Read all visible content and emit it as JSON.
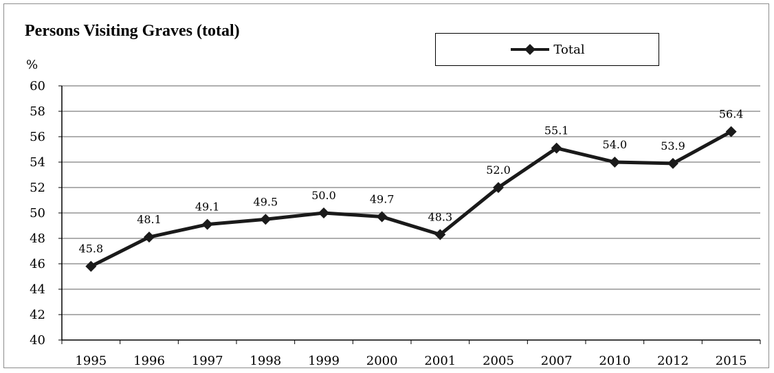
{
  "chart_data": {
    "type": "line",
    "title": "Persons Visiting Graves (total)",
    "ylabel": "%",
    "xlabel": "",
    "categories": [
      "1995",
      "1996",
      "1997",
      "1998",
      "1999",
      "2000",
      "2001",
      "2005",
      "2007",
      "2010",
      "2012",
      "2015"
    ],
    "series": [
      {
        "name": "Total",
        "values": [
          45.8,
          48.1,
          49.1,
          49.5,
          50.0,
          49.7,
          48.3,
          52.0,
          55.1,
          54.0,
          53.9,
          56.4
        ],
        "data_labels": [
          "45.8",
          "48.1",
          "49.1",
          "49.5",
          "50.0",
          "49.7",
          "48.3",
          "52.0",
          "55.1",
          "54.0",
          "53.9",
          "56.4"
        ],
        "color": "#1a1a1a",
        "marker": "diamond"
      }
    ],
    "ylim": [
      40,
      60
    ],
    "yticks": [
      "40",
      "42",
      "44",
      "46",
      "48",
      "50",
      "52",
      "54",
      "56",
      "58",
      "60"
    ],
    "grid": true,
    "legend_position": "top-right"
  },
  "colors": {
    "line": "#1a1a1a",
    "grid": "#7f7f7f",
    "axis": "#000000"
  }
}
